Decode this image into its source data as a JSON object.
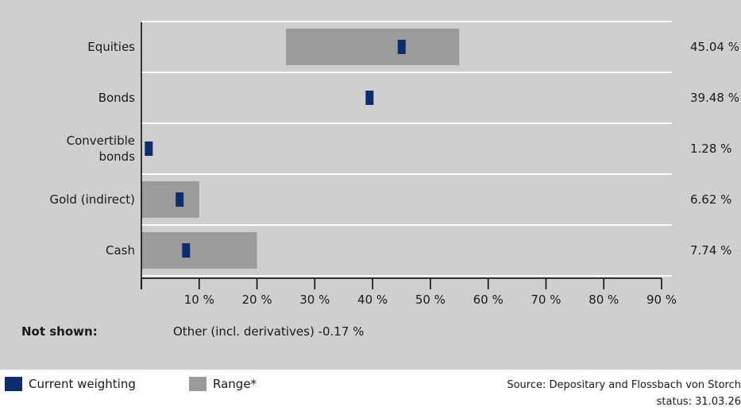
{
  "chart_data": {
    "type": "bar",
    "categories": [
      "Equities",
      "Bonds",
      "Convertible\nbonds",
      "Gold (indirect)",
      "Cash"
    ],
    "current": [
      45.04,
      39.48,
      1.28,
      6.62,
      7.74
    ],
    "range": [
      [
        25,
        55
      ],
      null,
      null,
      [
        0,
        10
      ],
      [
        0,
        20
      ]
    ],
    "value_labels": [
      "45.04 %",
      "39.48 %",
      "1.28 %",
      "6.62 %",
      "7.74 %"
    ],
    "x_ticks": [
      "10 %",
      "20 %",
      "30 %",
      "40 %",
      "50 %",
      "60 %",
      "70 %",
      "80 %",
      "90 %"
    ],
    "x_tick_values": [
      10,
      20,
      30,
      40,
      50,
      60,
      70,
      80,
      90
    ],
    "xlim": [
      0,
      90
    ],
    "legend_position": "bottom-left"
  },
  "not_shown": {
    "label": "Not shown:",
    "text": "Other (incl. derivatives) -0.17 %"
  },
  "legend": {
    "current_label": "Current weighting",
    "range_label": "Range*"
  },
  "colors": {
    "current": "#0d2c6e",
    "range": "#9b9b9b",
    "panel": "#cfcfcf",
    "divider": "#ffffff"
  },
  "source": "Source: Depositary and Flossbach von Storch",
  "status": "status: 31.03.26"
}
